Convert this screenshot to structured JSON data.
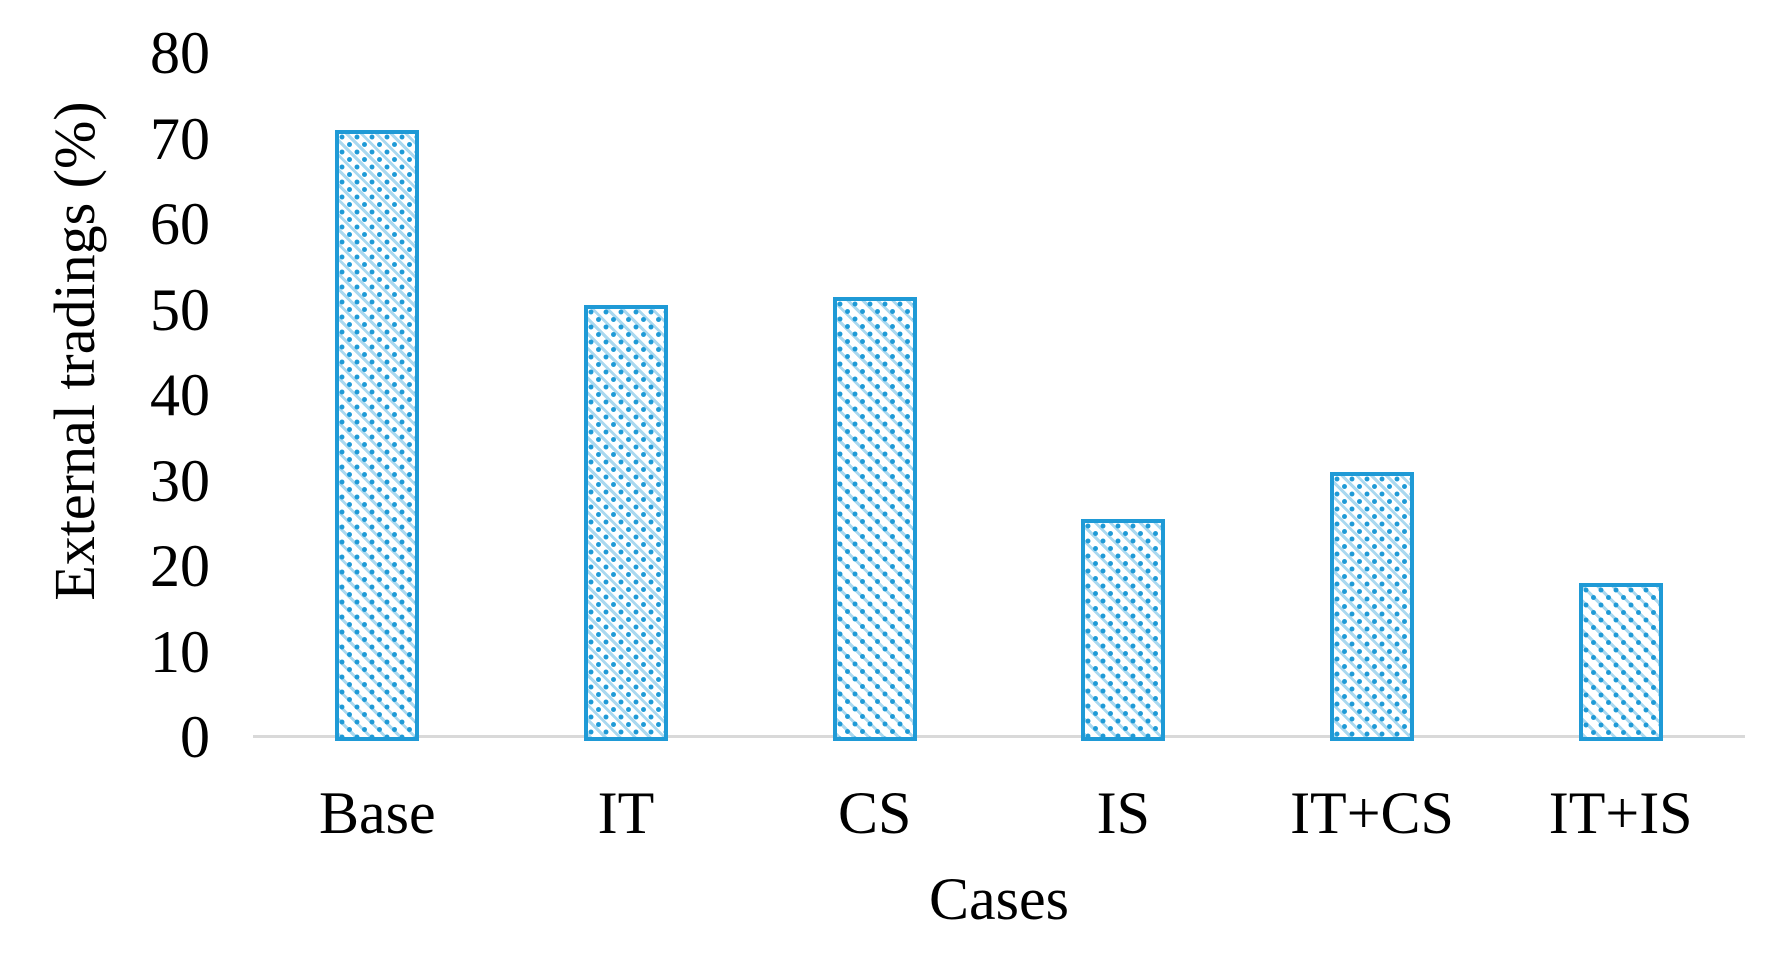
{
  "chart_data": {
    "type": "bar",
    "title": "",
    "categories": [
      "Base",
      "IT",
      "CS",
      "IS",
      "IT+CS",
      "IT+IS"
    ],
    "values": [
      71,
      50.5,
      51.5,
      25.5,
      31,
      18
    ],
    "xlabel": "Cases",
    "ylabel": "External tradings (%)",
    "ylim": [
      0,
      80
    ],
    "yticks": [
      0,
      10,
      20,
      30,
      40,
      50,
      60,
      70,
      80
    ],
    "grid": "off",
    "legend": "none",
    "bar_fill_style": "white with blue diagonal hatch and dots",
    "bar_border_color": "#1f9ad6",
    "axis_line_color": "#d9d9d9",
    "text_color": "#000000"
  }
}
